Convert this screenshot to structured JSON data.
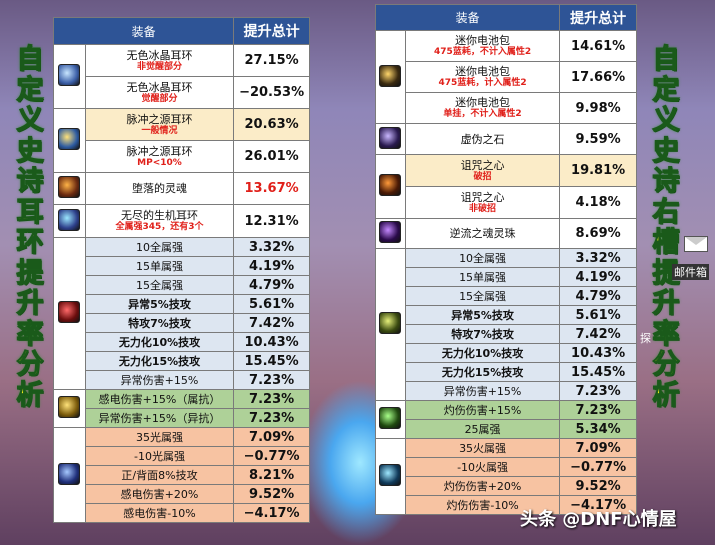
{
  "left_title_chars": [
    "自",
    "定",
    "义",
    "史",
    "诗",
    "耳",
    "环",
    "提",
    "升",
    "率",
    "分",
    "析"
  ],
  "right_title_chars": [
    "自",
    "定",
    "义",
    "史",
    "诗",
    "右",
    "槽",
    "提",
    "升",
    "率",
    "分",
    "析"
  ],
  "header": {
    "item": "装备",
    "value": "提升总计"
  },
  "left_rows": [
    {
      "name": "无色冰晶耳环",
      "note": "非觉醒部分",
      "value": "27.15%"
    },
    {
      "name": "无色冰晶耳环",
      "note": "觉醒部分",
      "value": "−20.53%"
    },
    {
      "name": "脉冲之源耳环",
      "note": "一般情况",
      "value": "20.63%"
    },
    {
      "name": "脉冲之源耳环",
      "note": "MP<10%",
      "value": "26.01%"
    },
    {
      "name": "堕落的灵魂",
      "note": "",
      "value": "13.67%"
    },
    {
      "name": "无尽的生机耳环",
      "note": "全属强345，还有3个",
      "value": "12.31%"
    },
    {
      "name": "10全属强",
      "value": "3.32%"
    },
    {
      "name": "15单属强",
      "value": "4.19%"
    },
    {
      "name": "15全属强",
      "value": "4.79%"
    },
    {
      "name": "异常5%技攻",
      "value": "5.61%"
    },
    {
      "name": "特攻7%技攻",
      "value": "7.42%"
    },
    {
      "name": "无力化10%技攻",
      "value": "10.43%"
    },
    {
      "name": "无力化15%技攻",
      "value": "15.45%"
    },
    {
      "name": "异常伤害+15%",
      "value": "7.23%"
    },
    {
      "name": "感电伤害+15%（属抗）",
      "value": "7.23%"
    },
    {
      "name": "异常伤害+15%（异抗）",
      "value": "7.23%"
    },
    {
      "name": "35光属强",
      "value": "7.09%"
    },
    {
      "name": "-10光属强",
      "value": "−0.77%"
    },
    {
      "name": "正/背面8%技攻",
      "value": "8.21%"
    },
    {
      "name": "感电伤害+20%",
      "value": "9.52%"
    },
    {
      "name": "感电伤害-10%",
      "value": "−4.17%"
    }
  ],
  "right_rows": [
    {
      "name": "迷你电池包",
      "note": "475蓝耗，不计入属性2",
      "value": "14.61%"
    },
    {
      "name": "迷你电池包",
      "note": "475蓝耗，计入属性2",
      "value": "17.66%"
    },
    {
      "name": "迷你电池包",
      "note": "单挂，不计入属性2",
      "value": "9.98%"
    },
    {
      "name": "虚伪之石",
      "note": "",
      "value": "9.59%"
    },
    {
      "name": "诅咒之心",
      "note": "破招",
      "value": "19.81%"
    },
    {
      "name": "诅咒之心",
      "note": "非破招",
      "value": "4.18%"
    },
    {
      "name": "逆流之魂灵珠",
      "note": "",
      "value": "8.69%"
    },
    {
      "name": "10全属强",
      "value": "3.32%"
    },
    {
      "name": "15单属强",
      "value": "4.19%"
    },
    {
      "name": "15全属强",
      "value": "4.79%"
    },
    {
      "name": "异常5%技攻",
      "value": "5.61%"
    },
    {
      "name": "特攻7%技攻",
      "value": "7.42%"
    },
    {
      "name": "无力化10%技攻",
      "value": "10.43%"
    },
    {
      "name": "无力化15%技攻",
      "value": "15.45%"
    },
    {
      "name": "异常伤害+15%",
      "value": "7.23%"
    },
    {
      "name": "灼伤伤害+15%",
      "value": "7.23%"
    },
    {
      "name": "25属强",
      "value": "5.34%"
    },
    {
      "name": "35火属强",
      "value": "7.09%"
    },
    {
      "name": "-10火属强",
      "value": "−0.77%"
    },
    {
      "name": "灼伤伤害+20%",
      "value": "9.52%"
    },
    {
      "name": "灼伤伤害-10%",
      "value": "−4.17%"
    }
  ],
  "watermark": "头条 @DNF心情屋",
  "mail_label": "邮件箱",
  "side_label": "探",
  "colors": {
    "header": "#2e5496",
    "row_yellow": "#fbecc8",
    "row_blue": "#dde6f1",
    "row_green": "#aed198",
    "row_orange": "#f7c3a2",
    "note_red": "#e0201a",
    "title_yellow": "#f3ef1a"
  }
}
